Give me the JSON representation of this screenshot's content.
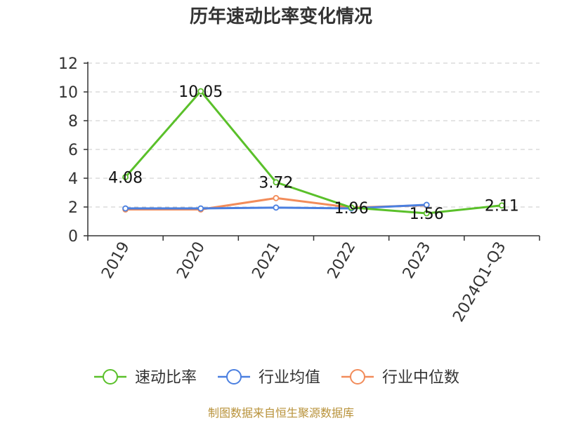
{
  "chart_data": {
    "type": "line",
    "title": "历年速动比率变化情况",
    "categories": [
      "2019",
      "2020",
      "2021",
      "2022",
      "2023",
      "2024Q1-Q3"
    ],
    "ylim": [
      0,
      12
    ],
    "yticks": [
      0,
      2,
      4,
      6,
      8,
      10,
      12
    ],
    "grid": true,
    "legend_position": "bottom",
    "series": [
      {
        "name": "速动比率",
        "color": "#5ac02a",
        "values": [
          4.08,
          10.05,
          3.72,
          1.96,
          1.56,
          2.11
        ],
        "labels": [
          "4.08",
          "10.05",
          "3.72",
          "1.96",
          "1.56",
          "2.11"
        ]
      },
      {
        "name": "行业均值",
        "color": "#4a7fe0",
        "values": [
          1.9,
          1.9,
          1.96,
          1.9,
          2.15,
          null
        ]
      },
      {
        "name": "行业中位数",
        "color": "#f28c5a",
        "values": [
          1.83,
          1.83,
          2.62,
          1.96,
          2.12,
          null
        ]
      }
    ]
  },
  "source": "制图数据来自恒生聚源数据库"
}
